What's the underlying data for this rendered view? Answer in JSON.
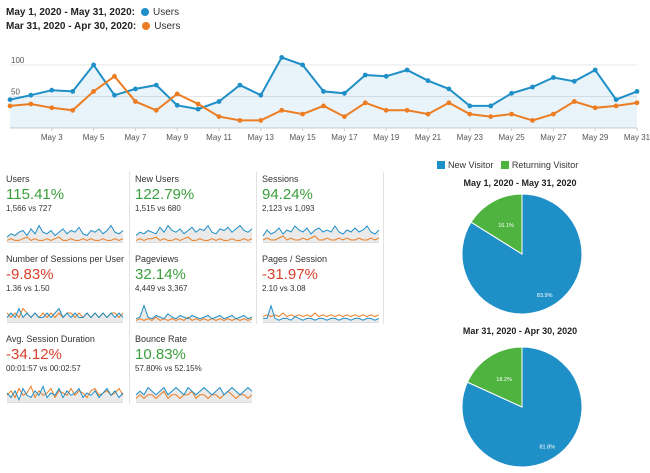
{
  "legend": {
    "range1": "May 1, 2020 - May 31, 2020:",
    "range2": "Mar 31, 2020 - Apr 30, 2020:",
    "series1_name": "Users",
    "series2_name": "Users"
  },
  "colors": {
    "current": "#1f8fc7",
    "previous": "#ec7d23",
    "new_visitor": "#1f8fc7",
    "returning_visitor": "#4fb33f",
    "positive": "#3a9e3a",
    "negative": "#d9412c"
  },
  "chart_data": [
    {
      "type": "line",
      "x": [
        "1",
        "2",
        "3",
        "4",
        "5",
        "6",
        "7",
        "8",
        "9",
        "10",
        "11",
        "12",
        "13",
        "14",
        "15",
        "16",
        "17",
        "18",
        "19",
        "20",
        "21",
        "22",
        "23",
        "24",
        "25",
        "26",
        "27",
        "28",
        "29",
        "30",
        "31"
      ],
      "x_tick_labels": [
        "May 3",
        "May 5",
        "May 7",
        "May 9",
        "May 11",
        "May 13",
        "May 15",
        "May 17",
        "May 19",
        "May 21",
        "May 23",
        "May 25",
        "May 27",
        "May 29",
        "May 31"
      ],
      "y_ticks": [
        50,
        100
      ],
      "ylim": [
        0,
        130
      ],
      "grid": true,
      "series": [
        {
          "name": "Users",
          "values": [
            45,
            52,
            60,
            58,
            100,
            52,
            62,
            68,
            36,
            30,
            42,
            68,
            52,
            112,
            100,
            58,
            55,
            84,
            82,
            92,
            75,
            62,
            35,
            35,
            55,
            65,
            80,
            74,
            92,
            45,
            58
          ]
        },
        {
          "name": "Users",
          "values": [
            35,
            38,
            32,
            28,
            58,
            82,
            42,
            28,
            54,
            38,
            18,
            12,
            12,
            28,
            22,
            35,
            18,
            40,
            28,
            28,
            22,
            40,
            22,
            18,
            22,
            12,
            22,
            42,
            32,
            35,
            40
          ]
        }
      ]
    },
    {
      "type": "pie",
      "title": "May 1, 2020 - May 31, 2020",
      "labels": [
        "New Visitor",
        "Returning Visitor"
      ],
      "values": [
        83.9,
        16.1
      ],
      "value_labels": [
        "83.9%",
        "16.1%"
      ]
    },
    {
      "type": "pie",
      "title": "Mar 31, 2020 - Apr 30, 2020",
      "labels": [
        "New Visitor",
        "Returning Visitor"
      ],
      "values": [
        81.8,
        18.2
      ],
      "value_labels": [
        "81.8%",
        "18.2%"
      ]
    }
  ],
  "pie_legend": {
    "new": "New Visitor",
    "returning": "Returning Visitor"
  },
  "metrics": [
    {
      "label": "Users",
      "value": "115.41%",
      "compare": "1,566 vs 727",
      "trend": "up",
      "spark_cur": [
        5,
        7,
        6,
        8,
        9,
        6,
        10,
        7,
        12,
        8,
        7,
        9,
        6,
        8,
        10,
        7,
        9,
        8,
        11,
        7,
        6,
        9,
        8,
        10,
        7,
        9,
        12,
        8,
        7,
        9
      ],
      "spark_prev": [
        3,
        4,
        3,
        3,
        4,
        5,
        3,
        4,
        3,
        3,
        4,
        3,
        4,
        5,
        3,
        3,
        4,
        3,
        3,
        4,
        3,
        4,
        3,
        3,
        4,
        3,
        3,
        4,
        3,
        4
      ]
    },
    {
      "label": "New Users",
      "value": "122.79%",
      "compare": "1,515 vs 680",
      "trend": "up",
      "spark_cur": [
        6,
        8,
        7,
        9,
        8,
        7,
        11,
        8,
        12,
        9,
        8,
        10,
        7,
        9,
        11,
        8,
        10,
        9,
        12,
        8,
        7,
        10,
        9,
        11,
        8,
        10,
        12,
        9,
        8,
        10
      ],
      "spark_prev": [
        3,
        4,
        3,
        4,
        4,
        5,
        3,
        4,
        3,
        3,
        4,
        3,
        4,
        5,
        3,
        3,
        4,
        3,
        3,
        4,
        3,
        4,
        3,
        3,
        4,
        3,
        3,
        4,
        3,
        4
      ]
    },
    {
      "label": "Sessions",
      "value": "94.24%",
      "compare": "2,123 vs 1,093",
      "trend": "up",
      "spark_cur": [
        6,
        9,
        7,
        8,
        10,
        7,
        9,
        8,
        11,
        9,
        8,
        10,
        7,
        9,
        10,
        8,
        9,
        8,
        11,
        8,
        7,
        9,
        8,
        10,
        8,
        9,
        11,
        8,
        7,
        9
      ],
      "spark_prev": [
        4,
        5,
        4,
        4,
        5,
        6,
        4,
        5,
        4,
        4,
        5,
        4,
        5,
        6,
        4,
        4,
        5,
        4,
        4,
        5,
        4,
        5,
        4,
        4,
        5,
        4,
        4,
        5,
        4,
        5
      ]
    },
    {
      "label": "Number of Sessions per User",
      "value": "-9.83%",
      "compare": "1.36 vs 1.50",
      "trend": "down",
      "spark_cur": [
        7,
        8,
        7,
        9,
        7,
        8,
        7,
        8,
        7,
        7,
        8,
        7,
        8,
        9,
        7,
        8,
        7,
        8,
        7,
        7,
        8,
        7,
        8,
        7,
        8,
        7,
        8,
        7,
        8,
        7
      ],
      "spark_prev": [
        8,
        7,
        8,
        7,
        9,
        8,
        7,
        8,
        7,
        8,
        7,
        8,
        7,
        8,
        7,
        8,
        8,
        7,
        8,
        7,
        8,
        7,
        8,
        7,
        8,
        7,
        8,
        8,
        7,
        8
      ]
    },
    {
      "label": "Pageviews",
      "value": "32.14%",
      "compare": "4,449 vs 3,367",
      "trend": "up",
      "spark_cur": [
        6,
        7,
        14,
        7,
        6,
        8,
        7,
        6,
        9,
        7,
        6,
        8,
        7,
        6,
        8,
        7,
        6,
        7,
        8,
        6,
        7,
        8,
        6,
        7,
        8,
        6,
        7,
        8,
        6,
        7
      ],
      "spark_prev": [
        5,
        6,
        5,
        6,
        5,
        7,
        5,
        6,
        5,
        6,
        5,
        6,
        5,
        7,
        5,
        6,
        5,
        6,
        5,
        6,
        5,
        6,
        5,
        6,
        5,
        6,
        5,
        6,
        5,
        6
      ]
    },
    {
      "label": "Pages / Session",
      "value": "-31.97%",
      "compare": "2.10 vs 3.08",
      "trend": "down",
      "spark_cur": [
        7,
        7,
        14,
        7,
        6,
        7,
        7,
        6,
        8,
        7,
        6,
        7,
        7,
        6,
        7,
        7,
        6,
        7,
        7,
        6,
        7,
        7,
        6,
        7,
        7,
        6,
        7,
        7,
        6,
        7
      ],
      "spark_prev": [
        8,
        9,
        8,
        9,
        8,
        10,
        8,
        9,
        8,
        9,
        8,
        9,
        8,
        10,
        8,
        9,
        8,
        9,
        8,
        9,
        8,
        9,
        8,
        9,
        8,
        9,
        8,
        9,
        8,
        9
      ]
    },
    {
      "label": "Avg. Session Duration",
      "value": "-34.12%",
      "compare": "00:01:57 vs 00:02:57",
      "trend": "down",
      "spark_cur": [
        8,
        6,
        9,
        5,
        10,
        7,
        6,
        9,
        7,
        11,
        6,
        8,
        7,
        10,
        6,
        9,
        7,
        8,
        10,
        6,
        8,
        7,
        9,
        6,
        8,
        10,
        7,
        9,
        6,
        8
      ],
      "spark_prev": [
        7,
        9,
        6,
        10,
        7,
        8,
        11,
        6,
        9,
        7,
        8,
        10,
        6,
        9,
        8,
        7,
        10,
        7,
        9,
        8,
        6,
        9,
        10,
        7,
        8,
        9,
        7,
        8,
        10,
        7
      ]
    },
    {
      "label": "Bounce Rate",
      "value": "10.83%",
      "compare": "57.80% vs 52.15%",
      "trend": "up",
      "spark_cur": [
        9,
        10,
        9,
        11,
        10,
        9,
        10,
        11,
        9,
        10,
        11,
        10,
        9,
        11,
        10,
        9,
        10,
        11,
        10,
        9,
        10,
        11,
        9,
        10,
        11,
        10,
        9,
        10,
        11,
        10
      ],
      "spark_prev": [
        8,
        9,
        8,
        9,
        9,
        8,
        9,
        10,
        8,
        9,
        9,
        8,
        9,
        9,
        10,
        8,
        9,
        9,
        8,
        9,
        9,
        8,
        9,
        10,
        9,
        8,
        9,
        9,
        8,
        9
      ]
    }
  ]
}
